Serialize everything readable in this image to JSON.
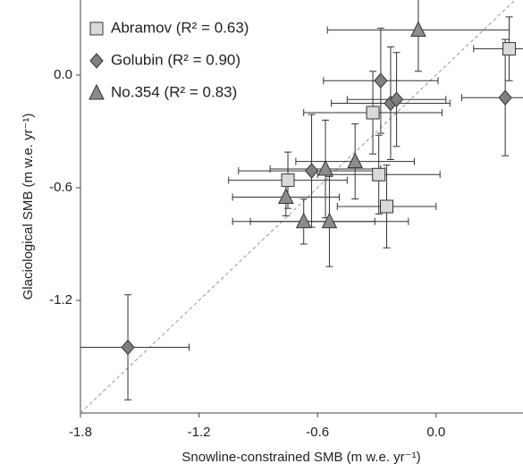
{
  "chart_data": {
    "type": "scatter",
    "x_label": "Snowline-constrained SMB (m w.e. yr⁻¹)",
    "y_label": "Glaciological SMB (m w.e. yr⁻¹)",
    "xlim": [
      -1.8,
      0.44
    ],
    "ylim": [
      -1.8,
      0.4
    ],
    "xticks": [
      -1.8,
      -1.2,
      -0.6,
      {
        "value": 0,
        "label": "0.0"
      }
    ],
    "yticks": [
      {
        "value": 0,
        "label": "0.0"
      },
      -0.6,
      -1.2
    ],
    "identity_line": true,
    "legend": "upper left",
    "series": [
      {
        "name": "Abramov (R² = 0.63)",
        "marker": "square",
        "color": "#d9d9d9",
        "x": [
          0.37,
          -0.32,
          -0.29,
          -0.25,
          -0.75
        ],
        "values": [
          0.14,
          -0.2,
          -0.53,
          -0.7,
          -0.56
        ],
        "xerr": [
          0.18,
          0.35,
          0.31,
          0.25,
          0.3
        ],
        "yerr": [
          0.17,
          0.22,
          0.21,
          0.22,
          0.15
        ]
      },
      {
        "name": "Golubin (R² = 0.90)",
        "marker": "diamond",
        "color": "#7f7f7f",
        "x": [
          -1.56,
          -0.28,
          -0.23,
          -0.2,
          0.35,
          -0.63
        ],
        "values": [
          -1.45,
          -0.03,
          -0.15,
          -0.13,
          -0.12,
          -0.51
        ],
        "xerr": [
          0.31,
          0.29,
          0.3,
          0.25,
          0.22,
          0.37
        ],
        "yerr": [
          0.28,
          0.28,
          0.3,
          0.25,
          0.31,
          0.3
        ]
      },
      {
        "name": "No.354 (R² = 0.83)",
        "marker": "triangle",
        "color": "#8c8c8c",
        "x": [
          -0.09,
          -0.41,
          -0.56,
          -0.76,
          -0.67,
          -0.54
        ],
        "values": [
          0.24,
          -0.46,
          -0.5,
          -0.65,
          -0.78,
          -0.78
        ],
        "xerr": [
          0.46,
          0.3,
          0.28,
          0.27,
          0.36,
          0.4
        ],
        "yerr": [
          0.22,
          0.2,
          0.26,
          0.1,
          0.12,
          0.24
        ]
      }
    ]
  }
}
